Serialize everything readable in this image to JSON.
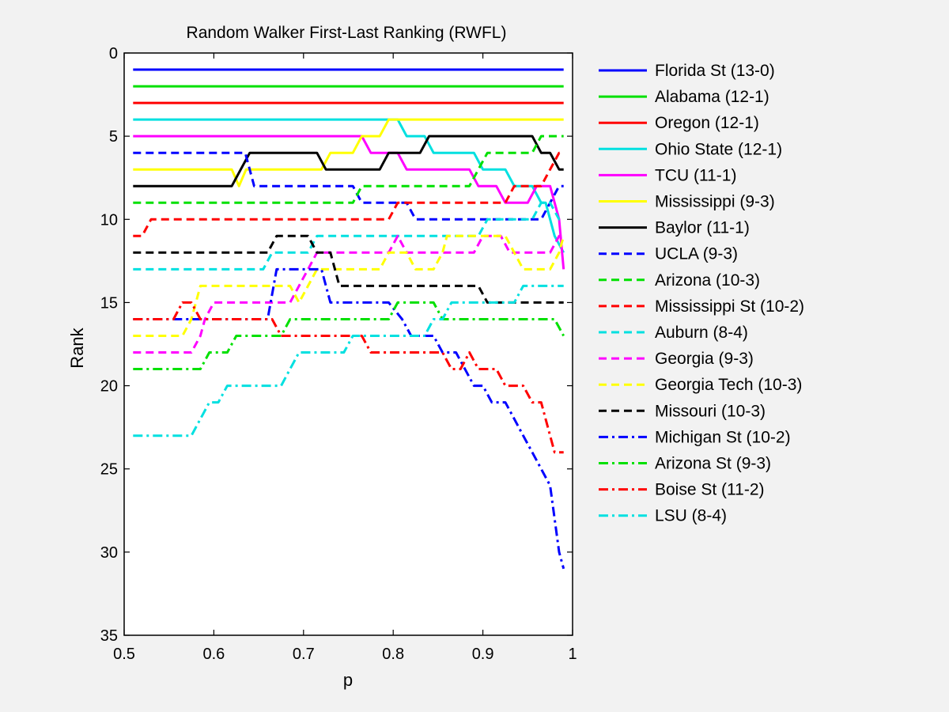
{
  "chart_data": {
    "type": "line",
    "title": "Random Walker First-Last Ranking (RWFL)",
    "xlabel": "p",
    "ylabel": "Rank",
    "xlim": [
      0.5,
      1
    ],
    "ylim": [
      0,
      35
    ],
    "y_reversed": true,
    "xticks": [
      "0.5",
      "0.6",
      "0.7",
      "0.8",
      "0.9",
      "1"
    ],
    "yticks": [
      "0",
      "5",
      "10",
      "15",
      "20",
      "25",
      "30",
      "35"
    ],
    "grid": false,
    "legend_position": "outside-right",
    "series": [
      {
        "name": "Florida St  (13-0)",
        "color": "#0000ff",
        "style": "solid",
        "points": [
          [
            0.51,
            1
          ],
          [
            0.99,
            1
          ]
        ]
      },
      {
        "name": "Alabama  (12-1)",
        "color": "#00e000",
        "style": "solid",
        "points": [
          [
            0.51,
            2
          ],
          [
            0.99,
            2
          ]
        ]
      },
      {
        "name": "Oregon  (12-1)",
        "color": "#ff0000",
        "style": "solid",
        "points": [
          [
            0.51,
            3
          ],
          [
            0.99,
            3
          ]
        ]
      },
      {
        "name": "Ohio State  (12-1)",
        "color": "#00e0e0",
        "style": "solid",
        "points": [
          [
            0.51,
            4
          ],
          [
            0.805,
            4
          ],
          [
            0.815,
            5
          ],
          [
            0.835,
            5
          ],
          [
            0.845,
            6
          ],
          [
            0.89,
            6
          ],
          [
            0.9,
            7
          ],
          [
            0.925,
            7
          ],
          [
            0.935,
            8
          ],
          [
            0.955,
            8
          ],
          [
            0.965,
            9
          ],
          [
            0.97,
            9
          ],
          [
            0.98,
            11
          ],
          [
            0.99,
            12
          ]
        ]
      },
      {
        "name": "TCU  (11-1)",
        "color": "#ff00ff",
        "style": "solid",
        "points": [
          [
            0.51,
            5
          ],
          [
            0.765,
            5
          ],
          [
            0.775,
            6
          ],
          [
            0.805,
            6
          ],
          [
            0.815,
            7
          ],
          [
            0.885,
            7
          ],
          [
            0.895,
            8
          ],
          [
            0.915,
            8
          ],
          [
            0.925,
            9
          ],
          [
            0.95,
            9
          ],
          [
            0.96,
            8
          ],
          [
            0.975,
            8
          ],
          [
            0.985,
            10
          ],
          [
            0.99,
            13
          ]
        ]
      },
      {
        "name": "Mississippi  (9-3)",
        "color": "#ffff00",
        "style": "solid",
        "points": [
          [
            0.51,
            7
          ],
          [
            0.62,
            7
          ],
          [
            0.628,
            8
          ],
          [
            0.636,
            7
          ],
          [
            0.72,
            7
          ],
          [
            0.73,
            6
          ],
          [
            0.755,
            6
          ],
          [
            0.765,
            5
          ],
          [
            0.785,
            5
          ],
          [
            0.795,
            4
          ],
          [
            0.99,
            4
          ]
        ]
      },
      {
        "name": "Baylor  (11-1)",
        "color": "#000000",
        "style": "solid",
        "points": [
          [
            0.51,
            8
          ],
          [
            0.62,
            8
          ],
          [
            0.63,
            7
          ],
          [
            0.64,
            6
          ],
          [
            0.715,
            6
          ],
          [
            0.725,
            7
          ],
          [
            0.785,
            7
          ],
          [
            0.795,
            6
          ],
          [
            0.83,
            6
          ],
          [
            0.84,
            5
          ],
          [
            0.955,
            5
          ],
          [
            0.965,
            6
          ],
          [
            0.975,
            6
          ],
          [
            0.985,
            7
          ],
          [
            0.99,
            7
          ]
        ]
      },
      {
        "name": "UCLA  (9-3)",
        "color": "#0000ff",
        "style": "dash",
        "points": [
          [
            0.51,
            6
          ],
          [
            0.635,
            6
          ],
          [
            0.645,
            8
          ],
          [
            0.755,
            8
          ],
          [
            0.765,
            9
          ],
          [
            0.815,
            9
          ],
          [
            0.825,
            10
          ],
          [
            0.965,
            10
          ],
          [
            0.975,
            9
          ],
          [
            0.985,
            8
          ],
          [
            0.99,
            8
          ]
        ]
      },
      {
        "name": "Arizona  (10-3)",
        "color": "#00e000",
        "style": "dash",
        "points": [
          [
            0.51,
            9
          ],
          [
            0.755,
            9
          ],
          [
            0.765,
            8
          ],
          [
            0.885,
            8
          ],
          [
            0.895,
            7
          ],
          [
            0.905,
            6
          ],
          [
            0.955,
            6
          ],
          [
            0.965,
            5
          ],
          [
            0.99,
            5
          ]
        ]
      },
      {
        "name": "Mississippi St  (10-2)",
        "color": "#ff0000",
        "style": "dash",
        "points": [
          [
            0.51,
            11
          ],
          [
            0.52,
            11
          ],
          [
            0.53,
            10
          ],
          [
            0.795,
            10
          ],
          [
            0.805,
            9
          ],
          [
            0.925,
            9
          ],
          [
            0.935,
            8
          ],
          [
            0.965,
            8
          ],
          [
            0.975,
            7
          ],
          [
            0.985,
            6
          ],
          [
            0.99,
            6
          ]
        ]
      },
      {
        "name": "Auburn  (8-4)",
        "color": "#00e0e0",
        "style": "dash",
        "points": [
          [
            0.51,
            13
          ],
          [
            0.655,
            13
          ],
          [
            0.665,
            12
          ],
          [
            0.705,
            12
          ],
          [
            0.715,
            11
          ],
          [
            0.895,
            11
          ],
          [
            0.905,
            10
          ],
          [
            0.955,
            10
          ],
          [
            0.965,
            9
          ],
          [
            0.975,
            9
          ],
          [
            0.985,
            10
          ],
          [
            0.99,
            10
          ]
        ]
      },
      {
        "name": "Georgia  (9-3)",
        "color": "#ff00ff",
        "style": "dash",
        "points": [
          [
            0.51,
            18
          ],
          [
            0.575,
            18
          ],
          [
            0.585,
            17
          ],
          [
            0.59,
            16
          ],
          [
            0.6,
            15
          ],
          [
            0.685,
            15
          ],
          [
            0.695,
            14
          ],
          [
            0.705,
            13
          ],
          [
            0.715,
            12
          ],
          [
            0.795,
            12
          ],
          [
            0.805,
            11
          ],
          [
            0.815,
            12
          ],
          [
            0.89,
            12
          ],
          [
            0.9,
            11
          ],
          [
            0.92,
            11
          ],
          [
            0.93,
            12
          ],
          [
            0.975,
            12
          ],
          [
            0.985,
            11
          ],
          [
            0.99,
            11
          ]
        ]
      },
      {
        "name": "Georgia Tech  (10-3)",
        "color": "#ffff00",
        "style": "dash",
        "points": [
          [
            0.51,
            17
          ],
          [
            0.565,
            17
          ],
          [
            0.575,
            16
          ],
          [
            0.585,
            14
          ],
          [
            0.685,
            14
          ],
          [
            0.695,
            15
          ],
          [
            0.705,
            14
          ],
          [
            0.715,
            13
          ],
          [
            0.785,
            13
          ],
          [
            0.795,
            12
          ],
          [
            0.815,
            12
          ],
          [
            0.825,
            13
          ],
          [
            0.845,
            13
          ],
          [
            0.855,
            12
          ],
          [
            0.86,
            11
          ],
          [
            0.925,
            11
          ],
          [
            0.935,
            12
          ],
          [
            0.945,
            13
          ],
          [
            0.975,
            13
          ],
          [
            0.985,
            12
          ],
          [
            0.99,
            11
          ]
        ]
      },
      {
        "name": "Missouri  (10-3)",
        "color": "#000000",
        "style": "dash",
        "points": [
          [
            0.51,
            12
          ],
          [
            0.66,
            12
          ],
          [
            0.67,
            11
          ],
          [
            0.705,
            11
          ],
          [
            0.715,
            12
          ],
          [
            0.73,
            12
          ],
          [
            0.74,
            14
          ],
          [
            0.895,
            14
          ],
          [
            0.905,
            15
          ],
          [
            0.99,
            15
          ]
        ]
      },
      {
        "name": "Michigan St  (10-2)",
        "color": "#0000ff",
        "style": "dashdot",
        "points": [
          [
            0.51,
            16
          ],
          [
            0.66,
            16
          ],
          [
            0.67,
            13
          ],
          [
            0.72,
            13
          ],
          [
            0.73,
            15
          ],
          [
            0.795,
            15
          ],
          [
            0.81,
            16
          ],
          [
            0.82,
            17
          ],
          [
            0.845,
            17
          ],
          [
            0.855,
            18
          ],
          [
            0.87,
            18
          ],
          [
            0.89,
            20
          ],
          [
            0.9,
            20
          ],
          [
            0.91,
            21
          ],
          [
            0.925,
            21
          ],
          [
            0.935,
            22
          ],
          [
            0.945,
            23
          ],
          [
            0.955,
            24
          ],
          [
            0.965,
            25
          ],
          [
            0.975,
            26
          ],
          [
            0.98,
            28
          ],
          [
            0.985,
            30
          ],
          [
            0.99,
            31
          ]
        ]
      },
      {
        "name": "Arizona St  (9-3)",
        "color": "#00e000",
        "style": "dashdot",
        "points": [
          [
            0.51,
            19
          ],
          [
            0.585,
            19
          ],
          [
            0.595,
            18
          ],
          [
            0.615,
            18
          ],
          [
            0.625,
            17
          ],
          [
            0.675,
            17
          ],
          [
            0.685,
            16
          ],
          [
            0.795,
            16
          ],
          [
            0.805,
            15
          ],
          [
            0.845,
            15
          ],
          [
            0.855,
            16
          ],
          [
            0.98,
            16
          ],
          [
            0.99,
            17
          ]
        ]
      },
      {
        "name": "Boise St  (11-2)",
        "color": "#ff0000",
        "style": "dashdot",
        "points": [
          [
            0.51,
            16
          ],
          [
            0.555,
            16
          ],
          [
            0.565,
            15
          ],
          [
            0.575,
            15
          ],
          [
            0.585,
            16
          ],
          [
            0.665,
            16
          ],
          [
            0.675,
            17
          ],
          [
            0.765,
            17
          ],
          [
            0.775,
            18
          ],
          [
            0.855,
            18
          ],
          [
            0.865,
            19
          ],
          [
            0.875,
            19
          ],
          [
            0.885,
            18
          ],
          [
            0.895,
            19
          ],
          [
            0.915,
            19
          ],
          [
            0.925,
            20
          ],
          [
            0.945,
            20
          ],
          [
            0.955,
            21
          ],
          [
            0.965,
            21
          ],
          [
            0.975,
            23
          ],
          [
            0.98,
            24
          ],
          [
            0.99,
            24
          ]
        ]
      },
      {
        "name": "LSU  (8-4)",
        "color": "#00e0e0",
        "style": "dashdot",
        "points": [
          [
            0.51,
            23
          ],
          [
            0.575,
            23
          ],
          [
            0.585,
            22
          ],
          [
            0.595,
            21
          ],
          [
            0.605,
            21
          ],
          [
            0.615,
            20
          ],
          [
            0.675,
            20
          ],
          [
            0.685,
            19
          ],
          [
            0.695,
            18
          ],
          [
            0.745,
            18
          ],
          [
            0.755,
            17
          ],
          [
            0.835,
            17
          ],
          [
            0.845,
            16
          ],
          [
            0.855,
            16
          ],
          [
            0.865,
            15
          ],
          [
            0.935,
            15
          ],
          [
            0.945,
            14
          ],
          [
            0.99,
            14
          ]
        ]
      }
    ]
  }
}
